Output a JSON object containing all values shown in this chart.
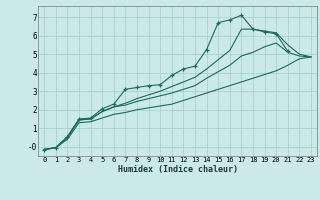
{
  "background_color": "#cce9e9",
  "grid_color": "#aad0d0",
  "line_color": "#1a6b5a",
  "marker": "+",
  "xlabel": "Humidex (Indice chaleur)",
  "x_ticks": [
    0,
    1,
    2,
    3,
    4,
    5,
    6,
    7,
    8,
    9,
    10,
    11,
    12,
    13,
    14,
    15,
    16,
    17,
    18,
    19,
    20,
    21,
    22,
    23
  ],
  "y_ticks": [
    0,
    1,
    2,
    3,
    4,
    5,
    6,
    7
  ],
  "y_tick_labels": [
    "-0",
    "1",
    "2",
    "3",
    "4",
    "5",
    "6",
    "7"
  ],
  "xlim": [
    -0.5,
    23.5
  ],
  "ylim": [
    -0.5,
    7.6
  ],
  "lines": [
    {
      "x": [
        0,
        1,
        2,
        3,
        4,
        5,
        6,
        7,
        8,
        9,
        10,
        11,
        12,
        13,
        14,
        15,
        16,
        17,
        18,
        19,
        20,
        21
      ],
      "y": [
        -0.15,
        -0.05,
        0.55,
        1.5,
        1.55,
        2.05,
        2.3,
        3.1,
        3.2,
        3.3,
        3.35,
        3.85,
        4.2,
        4.35,
        5.25,
        6.7,
        6.85,
        7.1,
        6.35,
        6.2,
        6.1,
        5.15
      ],
      "has_markers": true
    },
    {
      "x": [
        0,
        1,
        2,
        3,
        4,
        5,
        6,
        7,
        8,
        9,
        10,
        11,
        12,
        13,
        14,
        15,
        16,
        17,
        18,
        19,
        20,
        21,
        22,
        23
      ],
      "y": [
        -0.15,
        -0.05,
        0.5,
        1.45,
        1.5,
        1.9,
        2.15,
        2.35,
        2.6,
        2.8,
        3.0,
        3.25,
        3.5,
        3.75,
        4.2,
        4.7,
        5.2,
        6.35,
        6.35,
        6.25,
        6.15,
        5.5,
        5.0,
        4.85
      ],
      "has_markers": false
    },
    {
      "x": [
        0,
        1,
        2,
        3,
        4,
        5,
        6,
        7,
        8,
        9,
        10,
        11,
        12,
        13,
        14,
        15,
        16,
        17,
        18,
        19,
        20,
        21,
        22,
        23
      ],
      "y": [
        -0.15,
        -0.05,
        0.5,
        1.45,
        1.5,
        1.9,
        2.15,
        2.25,
        2.45,
        2.6,
        2.75,
        2.9,
        3.1,
        3.3,
        3.7,
        4.05,
        4.4,
        4.9,
        5.1,
        5.4,
        5.6,
        5.1,
        4.9,
        4.85
      ],
      "has_markers": false
    },
    {
      "x": [
        0,
        1,
        2,
        3,
        4,
        5,
        6,
        7,
        8,
        9,
        10,
        11,
        12,
        13,
        14,
        15,
        16,
        17,
        18,
        19,
        20,
        21,
        22,
        23
      ],
      "y": [
        -0.15,
        -0.05,
        0.4,
        1.3,
        1.35,
        1.55,
        1.75,
        1.85,
        2.0,
        2.1,
        2.2,
        2.3,
        2.5,
        2.7,
        2.9,
        3.1,
        3.3,
        3.5,
        3.7,
        3.9,
        4.1,
        4.4,
        4.75,
        4.85
      ],
      "has_markers": false
    }
  ]
}
